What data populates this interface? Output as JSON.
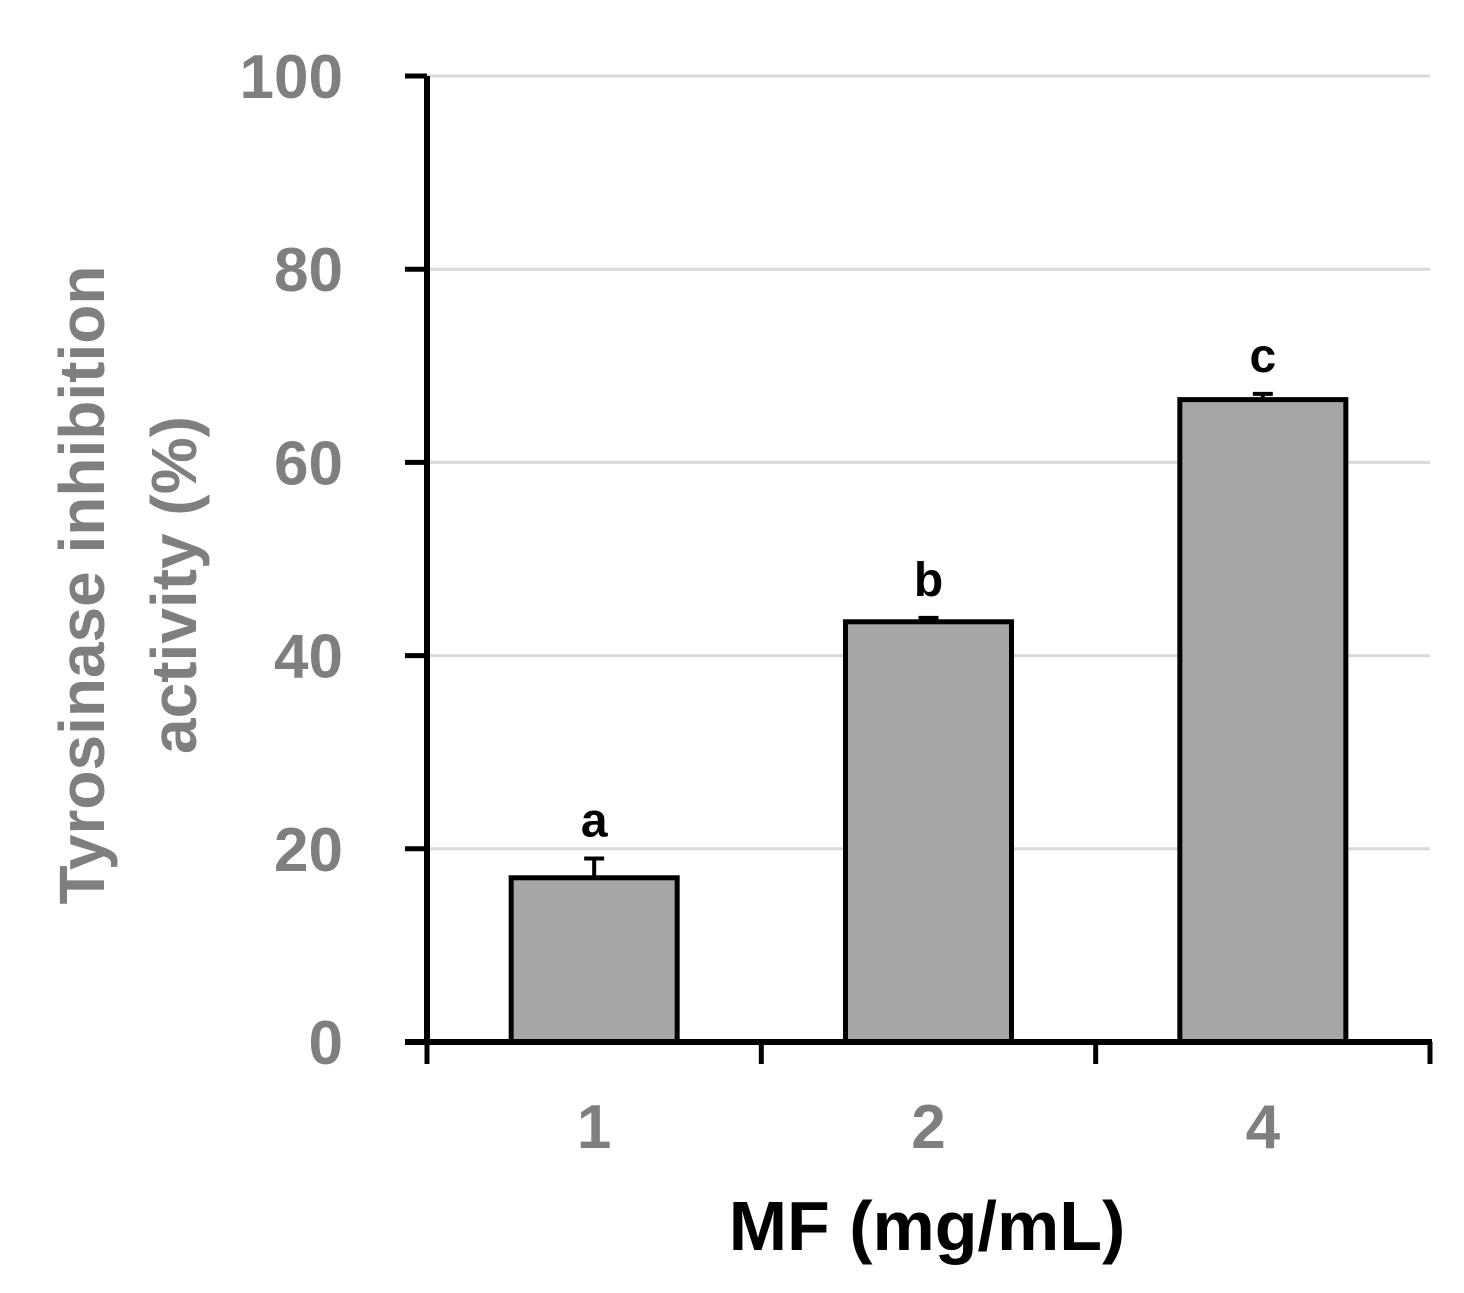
{
  "chart_data": {
    "type": "bar",
    "title": "",
    "xlabel": "MF (mg/mL)",
    "ylabel": [
      "Tyrosinase inhibition",
      "activity (%)"
    ],
    "categories": [
      "1",
      "2",
      "4"
    ],
    "values": [
      17,
      43.5,
      66.5
    ],
    "errors": [
      2,
      0.4,
      0.6
    ],
    "significance_labels": [
      "a",
      "b",
      "c"
    ],
    "ylim": [
      0,
      100
    ],
    "yticks": [
      "0",
      "20",
      "40",
      "60",
      "80",
      "100"
    ],
    "grid": true,
    "legend": "none",
    "colors": {
      "bar_fill": "#a6a6a6",
      "bar_stroke": "#000000",
      "axis": "#000000",
      "grid": "#d9d9d9",
      "tick_label": "#7f7f7f",
      "xlabel": "#000000",
      "ylabel": "#7f7f7f"
    }
  }
}
